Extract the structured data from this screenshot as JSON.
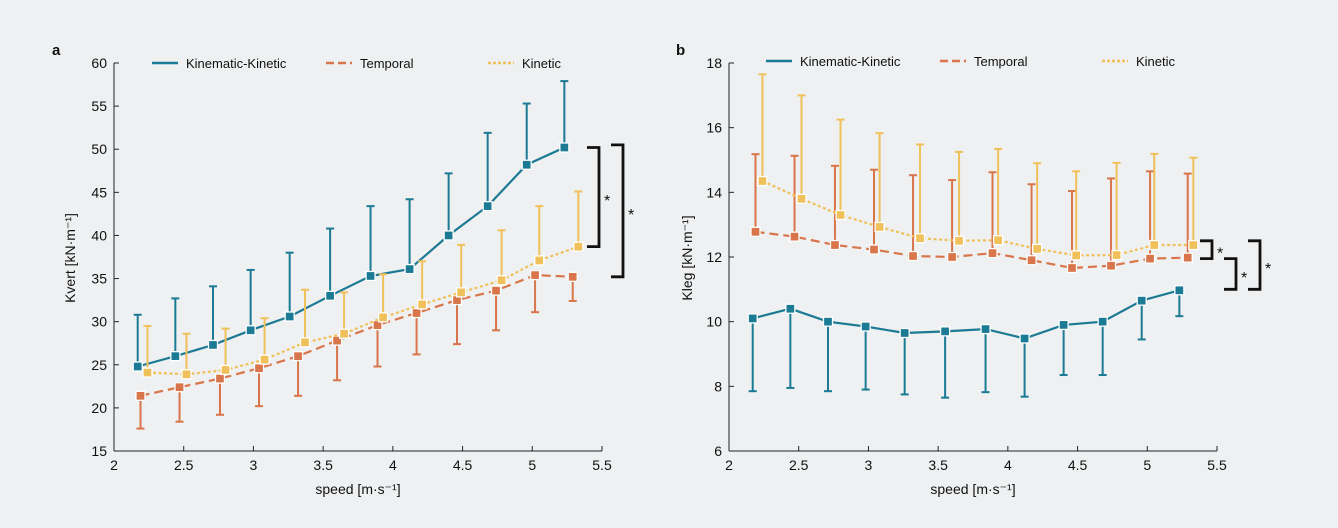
{
  "colors": {
    "kinematic_kinetic": "#1b7a94",
    "temporal": "#d9754a",
    "kinetic": "#f0c15a",
    "bracket": "#111111"
  },
  "chart_data": [
    {
      "panel": "a",
      "type": "line",
      "ylabel": "Kvert [kN·m⁻¹]",
      "xlabel": "speed [m·s⁻¹]",
      "xlim": [
        2,
        5.5
      ],
      "ylim": [
        15,
        60
      ],
      "xticks": [
        "2",
        "2.5",
        "3",
        "3.5",
        "4",
        "4.5",
        "5",
        "5.5"
      ],
      "yticks": [
        "15",
        "20",
        "25",
        "30",
        "35",
        "40",
        "45",
        "50",
        "55",
        "60"
      ],
      "legend": [
        "Kinematic-Kinetic",
        "Temporal",
        "Kinetic"
      ],
      "series": [
        {
          "name": "Kinematic-Kinetic",
          "style": "solid",
          "x": [
            2.17,
            2.44,
            2.71,
            2.98,
            3.26,
            3.55,
            3.84,
            4.12,
            4.4,
            4.68,
            4.96,
            5.23
          ],
          "y": [
            24.8,
            26.0,
            27.3,
            29.0,
            30.6,
            33.0,
            35.3,
            36.1,
            40.0,
            43.4,
            48.2,
            50.2
          ],
          "err": [
            6.0,
            6.7,
            6.8,
            7.0,
            7.4,
            7.8,
            8.1,
            8.1,
            7.2,
            8.5,
            7.1,
            7.7
          ],
          "err_dir": "up"
        },
        {
          "name": "Temporal",
          "style": "dashed",
          "x": [
            2.19,
            2.47,
            2.76,
            3.04,
            3.32,
            3.6,
            3.89,
            4.17,
            4.46,
            4.74,
            5.02,
            5.29
          ],
          "y": [
            21.4,
            22.4,
            23.4,
            24.6,
            26.0,
            27.8,
            29.6,
            31.0,
            32.5,
            33.6,
            35.4,
            35.2
          ],
          "err": [
            3.8,
            4.0,
            4.2,
            4.4,
            4.6,
            4.6,
            4.8,
            4.8,
            5.1,
            4.6,
            4.3,
            2.8
          ],
          "err_dir": "down"
        },
        {
          "name": "Kinetic",
          "style": "dotted",
          "x": [
            2.24,
            2.52,
            2.8,
            3.08,
            3.37,
            3.65,
            3.93,
            4.21,
            4.49,
            4.78,
            5.05,
            5.33
          ],
          "y": [
            24.1,
            23.9,
            24.4,
            25.6,
            27.6,
            28.6,
            30.5,
            32.0,
            33.4,
            34.8,
            37.1,
            38.7
          ],
          "err": [
            5.4,
            4.7,
            4.8,
            4.8,
            6.1,
            4.8,
            5.0,
            5.0,
            5.5,
            5.8,
            6.3,
            6.4
          ],
          "err_dir": "up"
        }
      ],
      "brackets": [
        {
          "y1": 50.2,
          "y2": 38.7,
          "label": "*",
          "level": 0
        },
        {
          "y1": 50.5,
          "y2": 35.2,
          "label": "*",
          "level": 1
        }
      ]
    },
    {
      "panel": "b",
      "type": "line",
      "ylabel": "Kleg [kN·m⁻¹]",
      "xlabel": "speed [m·s⁻¹]",
      "xlim": [
        2,
        5.5
      ],
      "ylim": [
        6,
        18
      ],
      "xticks": [
        "2",
        "2.5",
        "3",
        "3.5",
        "4",
        "4.5",
        "5",
        "5.5"
      ],
      "yticks": [
        "6",
        "8",
        "10",
        "12",
        "14",
        "16",
        "18"
      ],
      "legend": [
        "Kinematic-Kinetic",
        "Temporal",
        "Kinetic"
      ],
      "series": [
        {
          "name": "Kinematic-Kinetic",
          "style": "solid",
          "x": [
            2.17,
            2.44,
            2.71,
            2.98,
            3.26,
            3.55,
            3.84,
            4.12,
            4.4,
            4.68,
            4.96,
            5.23
          ],
          "y": [
            10.1,
            10.4,
            10.0,
            9.85,
            9.65,
            9.7,
            9.77,
            9.48,
            9.9,
            10.0,
            10.65,
            10.97
          ],
          "err": [
            2.25,
            2.45,
            2.15,
            1.95,
            1.9,
            2.05,
            1.95,
            1.8,
            1.55,
            1.65,
            1.2,
            0.8
          ],
          "err_dir": "down"
        },
        {
          "name": "Temporal",
          "style": "dashed",
          "x": [
            2.19,
            2.47,
            2.76,
            3.04,
            3.32,
            3.6,
            3.89,
            4.17,
            4.46,
            4.74,
            5.02,
            5.29
          ],
          "y": [
            12.78,
            12.63,
            12.37,
            12.23,
            12.03,
            12.0,
            12.12,
            11.9,
            11.66,
            11.73,
            11.95,
            11.98
          ],
          "err": [
            2.4,
            2.5,
            2.45,
            2.47,
            2.5,
            2.38,
            2.5,
            2.35,
            2.38,
            2.7,
            2.7,
            2.6
          ],
          "err_dir": "up"
        },
        {
          "name": "Kinetic",
          "style": "dotted",
          "x": [
            2.24,
            2.52,
            2.8,
            3.08,
            3.37,
            3.65,
            3.93,
            4.21,
            4.49,
            4.78,
            5.05,
            5.33
          ],
          "y": [
            14.35,
            13.8,
            13.3,
            12.93,
            12.58,
            12.5,
            12.52,
            12.25,
            12.05,
            12.06,
            12.37,
            12.37
          ],
          "err": [
            3.3,
            3.2,
            2.95,
            2.9,
            2.9,
            2.75,
            2.82,
            2.65,
            2.6,
            2.85,
            2.82,
            2.7
          ],
          "err_dir": "up"
        }
      ],
      "brackets": [
        {
          "y1": 12.5,
          "y2": 11.95,
          "label": "*",
          "level": 0
        },
        {
          "y1": 11.95,
          "y2": 11.0,
          "label": "*",
          "level": 1
        },
        {
          "y1": 12.5,
          "y2": 11.0,
          "label": "*",
          "level": 2
        }
      ]
    }
  ]
}
